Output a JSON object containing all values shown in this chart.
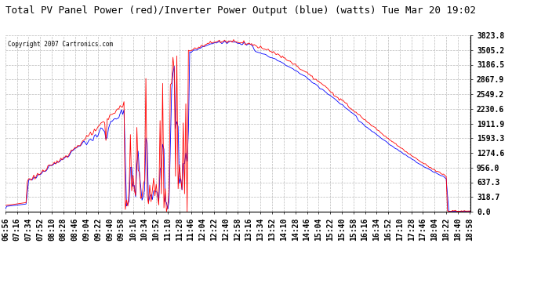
{
  "title": "Total PV Panel Power (red)/Inverter Power Output (blue) (watts) Tue Mar 20 19:02",
  "copyright_text": "Copyright 2007 Cartronics.com",
  "background_color": "#FFFFFF",
  "plot_bg_color": "#FFFFFF",
  "grid_color": "#AAAAAA",
  "x_labels": [
    "06:56",
    "07:16",
    "07:34",
    "07:52",
    "08:10",
    "08:28",
    "08:46",
    "09:04",
    "09:22",
    "09:40",
    "09:58",
    "10:16",
    "10:34",
    "10:52",
    "11:10",
    "11:28",
    "11:46",
    "12:04",
    "12:22",
    "12:40",
    "12:58",
    "13:16",
    "13:34",
    "13:52",
    "14:10",
    "14:28",
    "14:46",
    "15:04",
    "15:22",
    "15:40",
    "15:58",
    "16:16",
    "16:34",
    "16:52",
    "17:10",
    "17:28",
    "17:46",
    "18:04",
    "18:22",
    "18:40",
    "18:58"
  ],
  "y_ticks": [
    0.0,
    318.7,
    637.3,
    956.0,
    1274.6,
    1593.3,
    1911.9,
    2230.6,
    2549.2,
    2867.9,
    3186.5,
    3505.2,
    3823.8
  ],
  "y_max": 3823.8,
  "y_min": 0.0,
  "title_fontsize": 9,
  "tick_fontsize": 7,
  "red_color": "#FF0000",
  "blue_color": "#0000FF",
  "figwidth": 6.9,
  "figheight": 3.75,
  "dpi": 100
}
